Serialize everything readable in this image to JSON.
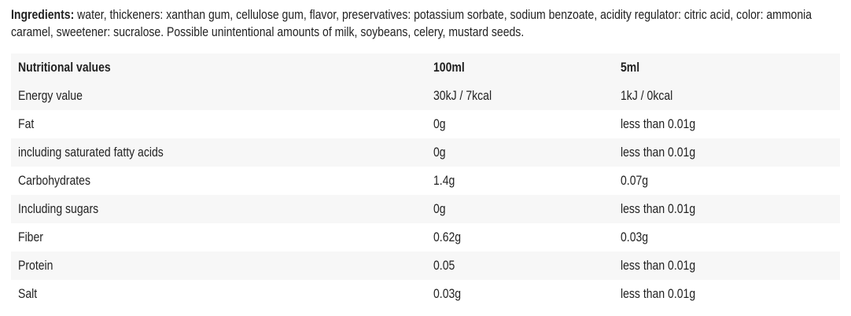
{
  "ingredients": {
    "label": "Ingredients:",
    "text": " water, thickeners: xanthan gum, cellulose gum, flavor, preservatives: potassium sorbate, sodium benzoate, acidity regulator: citric acid, color: ammonia caramel, sweetener: sucralose. Possible unintentional amounts of milk, soybeans, celery, mustard seeds."
  },
  "table": {
    "headers": [
      "Nutritional values",
      "100ml",
      "5ml"
    ],
    "rows": [
      [
        "Energy value",
        "30kJ / 7kcal",
        "1kJ / 0kcal"
      ],
      [
        "Fat",
        "0g",
        "less than 0.01g"
      ],
      [
        "including saturated fatty acids",
        "0g",
        "less than 0.01g"
      ],
      [
        "Carbohydrates",
        "1.4g",
        "0.07g"
      ],
      [
        "Including sugars",
        "0g",
        "less than 0.01g"
      ],
      [
        "Fiber",
        "0.62g",
        "0.03g"
      ],
      [
        "Protein",
        "0.05",
        "less than 0.01g"
      ],
      [
        "Salt",
        "0.03g",
        "less than 0.01g"
      ]
    ]
  },
  "colors": {
    "row_stripe": "#f7f7f7",
    "text": "#222222"
  }
}
